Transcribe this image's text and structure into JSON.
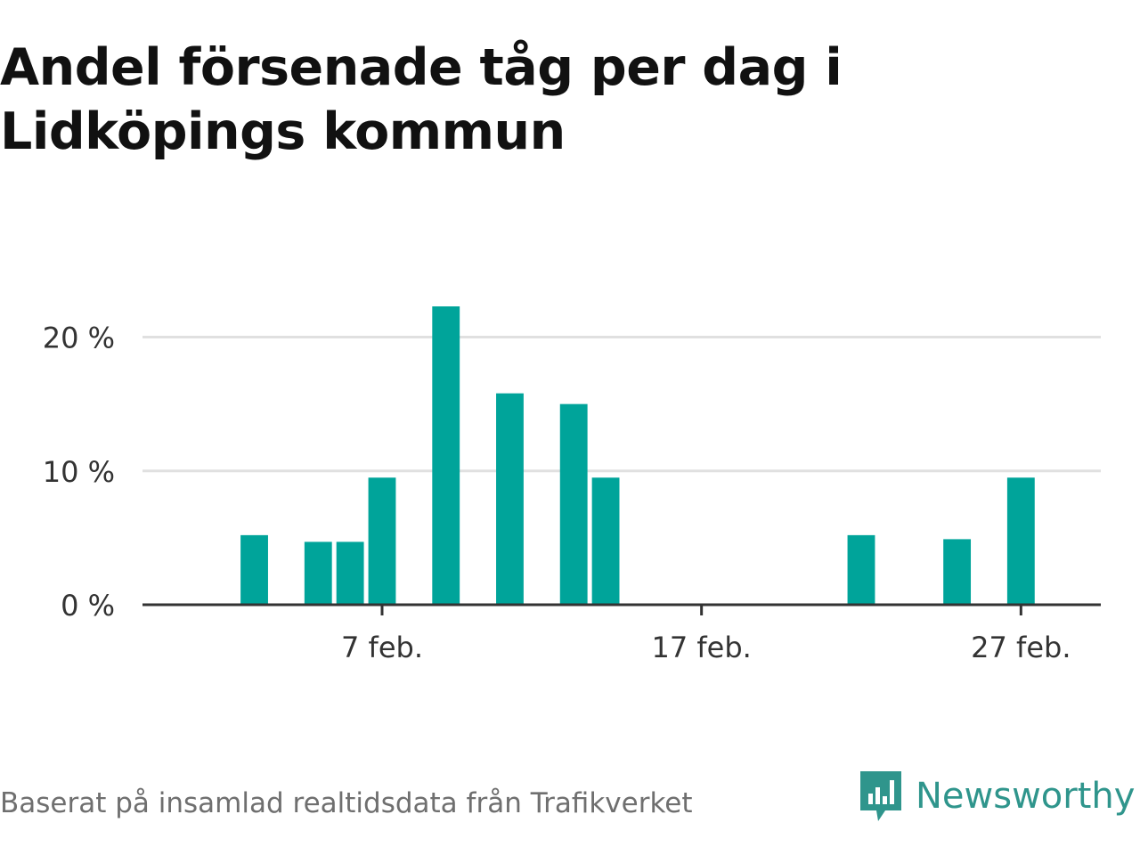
{
  "title": "Andel försenade tåg per dag i Lidköpings kommun",
  "footer": {
    "source": "Baserat på insamlad realtidsdata från Trafikverket",
    "brand": "Newsworthy"
  },
  "colors": {
    "bar": "#00a49a",
    "grid": "#e0e0e0",
    "axis": "#333333",
    "brand": "#2f958c"
  },
  "chart_data": {
    "type": "bar",
    "x": [
      "2024-01-31",
      "2024-02-01",
      "2024-02-02",
      "2024-02-03",
      "2024-02-04",
      "2024-02-05",
      "2024-02-06",
      "2024-02-07",
      "2024-02-08",
      "2024-02-09",
      "2024-02-10",
      "2024-02-11",
      "2024-02-12",
      "2024-02-13",
      "2024-02-14",
      "2024-02-15",
      "2024-02-16",
      "2024-02-17",
      "2024-02-18",
      "2024-02-19",
      "2024-02-20",
      "2024-02-21",
      "2024-02-22",
      "2024-02-23",
      "2024-02-24",
      "2024-02-25",
      "2024-02-26",
      "2024-02-27",
      "2024-02-28",
      "2024-02-29"
    ],
    "values": [
      0,
      0,
      0,
      5.2,
      0,
      4.7,
      4.7,
      9.5,
      0,
      22.3,
      0,
      15.8,
      0,
      15.0,
      9.5,
      0,
      0,
      0,
      0,
      0,
      0,
      0,
      5.2,
      0,
      0,
      4.9,
      0,
      9.5,
      0,
      0
    ],
    "unit": "%",
    "ylim": [
      0,
      22.3
    ],
    "yticks": [
      0,
      10,
      20
    ],
    "ytick_labels": [
      "0 %",
      "10 %",
      "20 %"
    ],
    "xticks": [
      "2024-02-07",
      "2024-02-17",
      "2024-02-27"
    ],
    "xtick_labels": [
      "7 feb.",
      "17 feb.",
      "27 feb."
    ],
    "grid": true,
    "legend": "none"
  }
}
